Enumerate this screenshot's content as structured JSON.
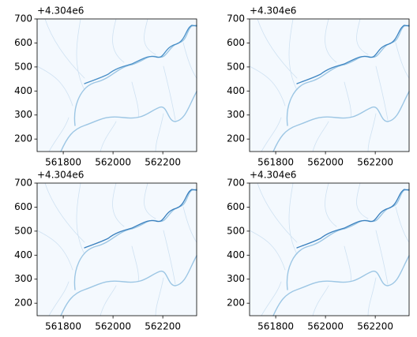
{
  "chart_data": [
    {
      "type": "image",
      "offset_text": "+4.304e6",
      "xlim": [
        561695,
        562336
      ],
      "ylim": [
        148,
        700
      ],
      "xticks": [
        561800,
        562000,
        562200
      ],
      "yticks": [
        200,
        300,
        400,
        500,
        600,
        700
      ],
      "color": "#4a90c8"
    },
    {
      "type": "image",
      "offset_text": "+4.304e6",
      "xlim": [
        561695,
        562336
      ],
      "ylim": [
        148,
        700
      ],
      "xticks": [
        561800,
        562000,
        562200
      ],
      "yticks": [
        200,
        300,
        400,
        500,
        600,
        700
      ],
      "color": "#3f86c2"
    },
    {
      "type": "image",
      "offset_text": "+4.304e6",
      "xlim": [
        561695,
        562336
      ],
      "ylim": [
        148,
        700
      ],
      "xticks": [
        561800,
        562000,
        562200
      ],
      "yticks": [
        200,
        300,
        400,
        500,
        600,
        700
      ],
      "color": "#3a80be"
    },
    {
      "type": "image",
      "offset_text": "+4.304e6",
      "xlim": [
        561695,
        562336
      ],
      "ylim": [
        148,
        700
      ],
      "xticks": [
        561800,
        562000,
        562200
      ],
      "yticks": [
        200,
        300,
        400,
        500,
        600,
        700
      ],
      "color": "#3a80be"
    }
  ]
}
